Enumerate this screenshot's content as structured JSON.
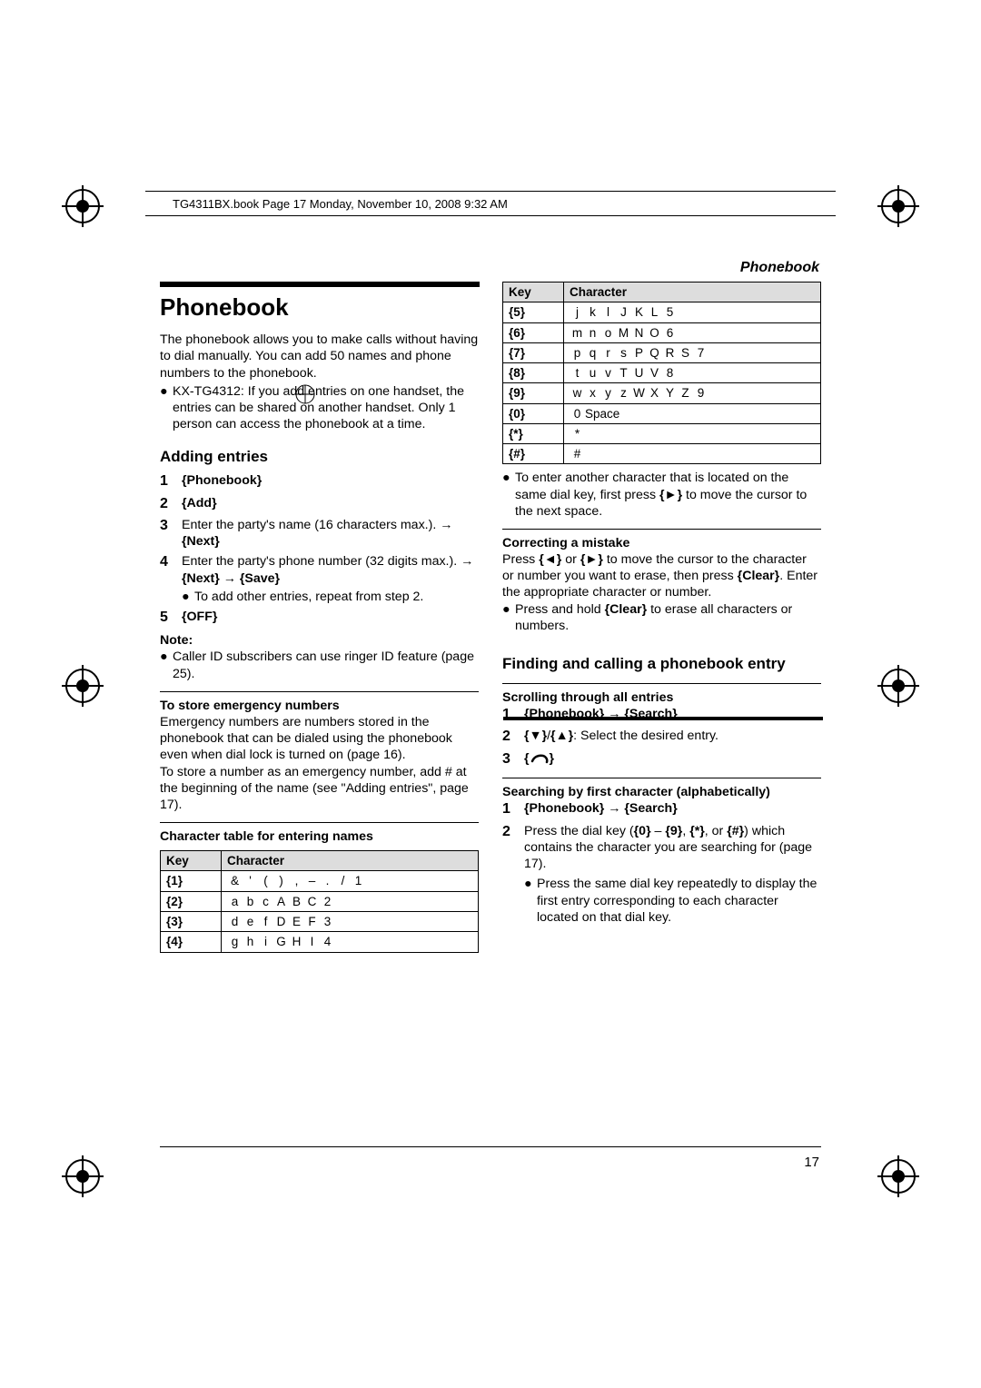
{
  "header": "TG4311BX.book  Page 17  Monday, November 10, 2008  9:32 AM",
  "section_label": "Phonebook",
  "title": "Phonebook",
  "intro": "The phonebook allows you to make calls without having to dial manually. You can add 50 names and phone numbers to the phonebook.",
  "intro_bullet": "KX-TG4312: If you add entries on one handset, the entries can be shared on another handset. Only 1 person can access the phonebook at a time.",
  "adding_heading": "Adding entries",
  "steps": {
    "s1": "{Phonebook}",
    "s2": "{Add}",
    "s3a": "Enter the party's name (16 characters max.). ",
    "s3b": " {Next}",
    "s4a": "Enter the party's phone number (32 digits max.). ",
    "s4b": " {Next} ",
    "s4c": " {Save}",
    "s4_sub": "To add other entries, repeat from step 2.",
    "s5": "{OFF}"
  },
  "note_label": "Note:",
  "note_bullet": "Caller ID subscribers can use ringer ID feature (page 25).",
  "emerg_heading": "To store emergency numbers",
  "emerg_body": "Emergency numbers are numbers stored in the phonebook that can be dialed using the phonebook even when dial lock is turned on (page 16).\nTo store a number as an emergency number, add # at the beginning of the name (see \"Adding entries\", page 17).",
  "chartable_heading": "Character table for entering names",
  "table1": {
    "head_key": "Key",
    "head_char": "Character",
    "rows": [
      {
        "key": "{1}",
        "chars": [
          "&",
          "'",
          "(",
          ")",
          ",",
          "–",
          ".",
          "/",
          "1"
        ]
      },
      {
        "key": "{2}",
        "chars": [
          "a",
          "b",
          "c",
          "A",
          "B",
          "C",
          "2"
        ]
      },
      {
        "key": "{3}",
        "chars": [
          "d",
          "e",
          "f",
          "D",
          "E",
          "F",
          "3"
        ]
      },
      {
        "key": "{4}",
        "chars": [
          "g",
          "h",
          "i",
          "G",
          "H",
          "I",
          "4"
        ]
      }
    ]
  },
  "table2": {
    "head_key": "Key",
    "head_char": "Character",
    "rows": [
      {
        "key": "{5}",
        "chars": [
          "j",
          "k",
          "l",
          "J",
          "K",
          "L",
          "5"
        ]
      },
      {
        "key": "{6}",
        "chars": [
          "m",
          "n",
          "o",
          "M",
          "N",
          "O",
          "6"
        ]
      },
      {
        "key": "{7}",
        "chars": [
          "p",
          "q",
          "r",
          "s",
          "P",
          "Q",
          "R",
          "S",
          "7"
        ]
      },
      {
        "key": "{8}",
        "chars": [
          "t",
          "u",
          "v",
          "T",
          "U",
          "V",
          "8"
        ]
      },
      {
        "key": "{9}",
        "chars": [
          "w",
          "x",
          "y",
          "z",
          "W",
          "X",
          "Y",
          "Z",
          "9"
        ]
      },
      {
        "key": "{0}",
        "chars": [
          "0",
          "Space"
        ]
      },
      {
        "key": "{*}",
        "chars": [
          "*"
        ]
      },
      {
        "key": "{#}",
        "chars": [
          "#"
        ]
      }
    ]
  },
  "col2_bullet": "To enter another character that is located on the same dial key, first press {►} to move the cursor to the next space.",
  "correcting_heading": "Correcting a mistake",
  "correcting_body": "Press {◄} or {►} to move the cursor to the character or number you want to erase, then press {Clear}. Enter the appropriate character or number.",
  "correcting_bullet": "Press and hold {Clear} to erase all characters or numbers.",
  "finding_heading": "Finding and calling a phonebook entry",
  "scroll_heading": "Scrolling through all entries",
  "scroll1a": "{Phonebook} ",
  "scroll1b": " {Search}",
  "scroll2": "{▼}/{▲}: Select the desired entry.",
  "search_heading": "Searching by first character (alphabetically)",
  "search1a": "{Phonebook} ",
  "search1b": " {Search}",
  "search2": "Press the dial key ({0} – {9}, {*}, or {#}) which contains the character you are searching for (page 17).",
  "search2_bullet": "Press the same dial key repeatedly to display the first entry corresponding to each character located on that dial key.",
  "page_number": "17"
}
